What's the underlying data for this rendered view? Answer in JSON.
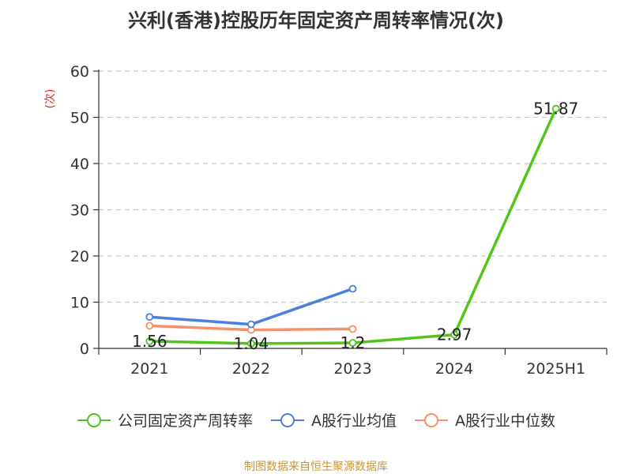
{
  "page": {
    "title": "兴利(香港)控股历年固定资产周转率情况(次)",
    "source": "制图数据来自恒生聚源数据库"
  },
  "colors": {
    "company": "#52c41a",
    "avg": "#4a7fe0",
    "median": "#f4916a",
    "grid": "#c8c8c8",
    "axis": "#333333",
    "ylabel": "#e02020"
  },
  "chart_data": {
    "type": "line",
    "title": "兴利(香港)控股历年固定资产周转率情况(次)",
    "ylabel": "(次)",
    "xlabel": "",
    "categories": [
      "2021",
      "2022",
      "2023",
      "2024",
      "2025H1"
    ],
    "ylim": [
      0,
      60
    ],
    "yticks": [
      0,
      10,
      20,
      30,
      40,
      50,
      60
    ],
    "grid": true,
    "legend_position": "bottom",
    "series": [
      {
        "name": "公司固定资产周转率",
        "color_key": "company",
        "values": [
          1.56,
          1.04,
          1.2,
          2.97,
          51.87
        ],
        "labels": [
          "1.56",
          "1.04",
          "1.2",
          "2.97",
          "51.87"
        ]
      },
      {
        "name": "A股行业均值",
        "color_key": "avg",
        "values": [
          6.8,
          5.2,
          12.9,
          null,
          null
        ],
        "labels": []
      },
      {
        "name": "A股行业中位数",
        "color_key": "median",
        "values": [
          4.9,
          4.0,
          4.2,
          null,
          null
        ],
        "labels": []
      }
    ]
  }
}
